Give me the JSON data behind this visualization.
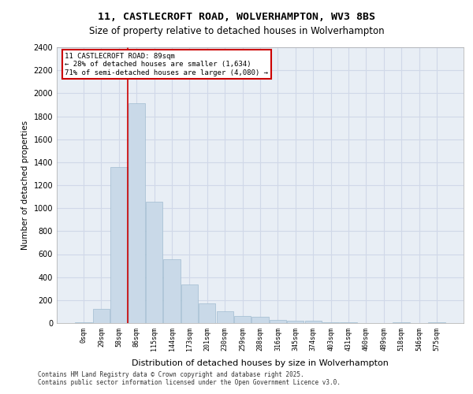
{
  "title_line1": "11, CASTLECROFT ROAD, WOLVERHAMPTON, WV3 8BS",
  "title_line2": "Size of property relative to detached houses in Wolverhampton",
  "xlabel": "Distribution of detached houses by size in Wolverhampton",
  "ylabel": "Number of detached properties",
  "footer": "Contains HM Land Registry data © Crown copyright and database right 2025.\nContains public sector information licensed under the Open Government Licence v3.0.",
  "bar_labels": [
    "0sqm",
    "29sqm",
    "58sqm",
    "86sqm",
    "115sqm",
    "144sqm",
    "173sqm",
    "201sqm",
    "230sqm",
    "259sqm",
    "288sqm",
    "316sqm",
    "345sqm",
    "374sqm",
    "403sqm",
    "431sqm",
    "460sqm",
    "489sqm",
    "518sqm",
    "546sqm",
    "575sqm"
  ],
  "bar_values": [
    10,
    125,
    1360,
    1910,
    1055,
    555,
    335,
    170,
    105,
    60,
    55,
    30,
    22,
    18,
    10,
    5,
    1,
    0,
    5,
    0,
    5
  ],
  "bar_color": "#c9d9e8",
  "bar_edge_color": "#a0bcd0",
  "grid_color": "#d0d8e8",
  "background_color": "#e8eef5",
  "annotation_box_title": "11 CASTLECROFT ROAD: 89sqm",
  "annotation_line1": "← 28% of detached houses are smaller (1,634)",
  "annotation_line2": "71% of semi-detached houses are larger (4,080) →",
  "property_line_x": 89,
  "property_bin_index": 3,
  "ylim": [
    0,
    2400
  ],
  "yticks": [
    0,
    200,
    400,
    600,
    800,
    1000,
    1200,
    1400,
    1600,
    1800,
    2000,
    2200,
    2400
  ],
  "annotation_color": "#cc0000",
  "bin_width": 29
}
